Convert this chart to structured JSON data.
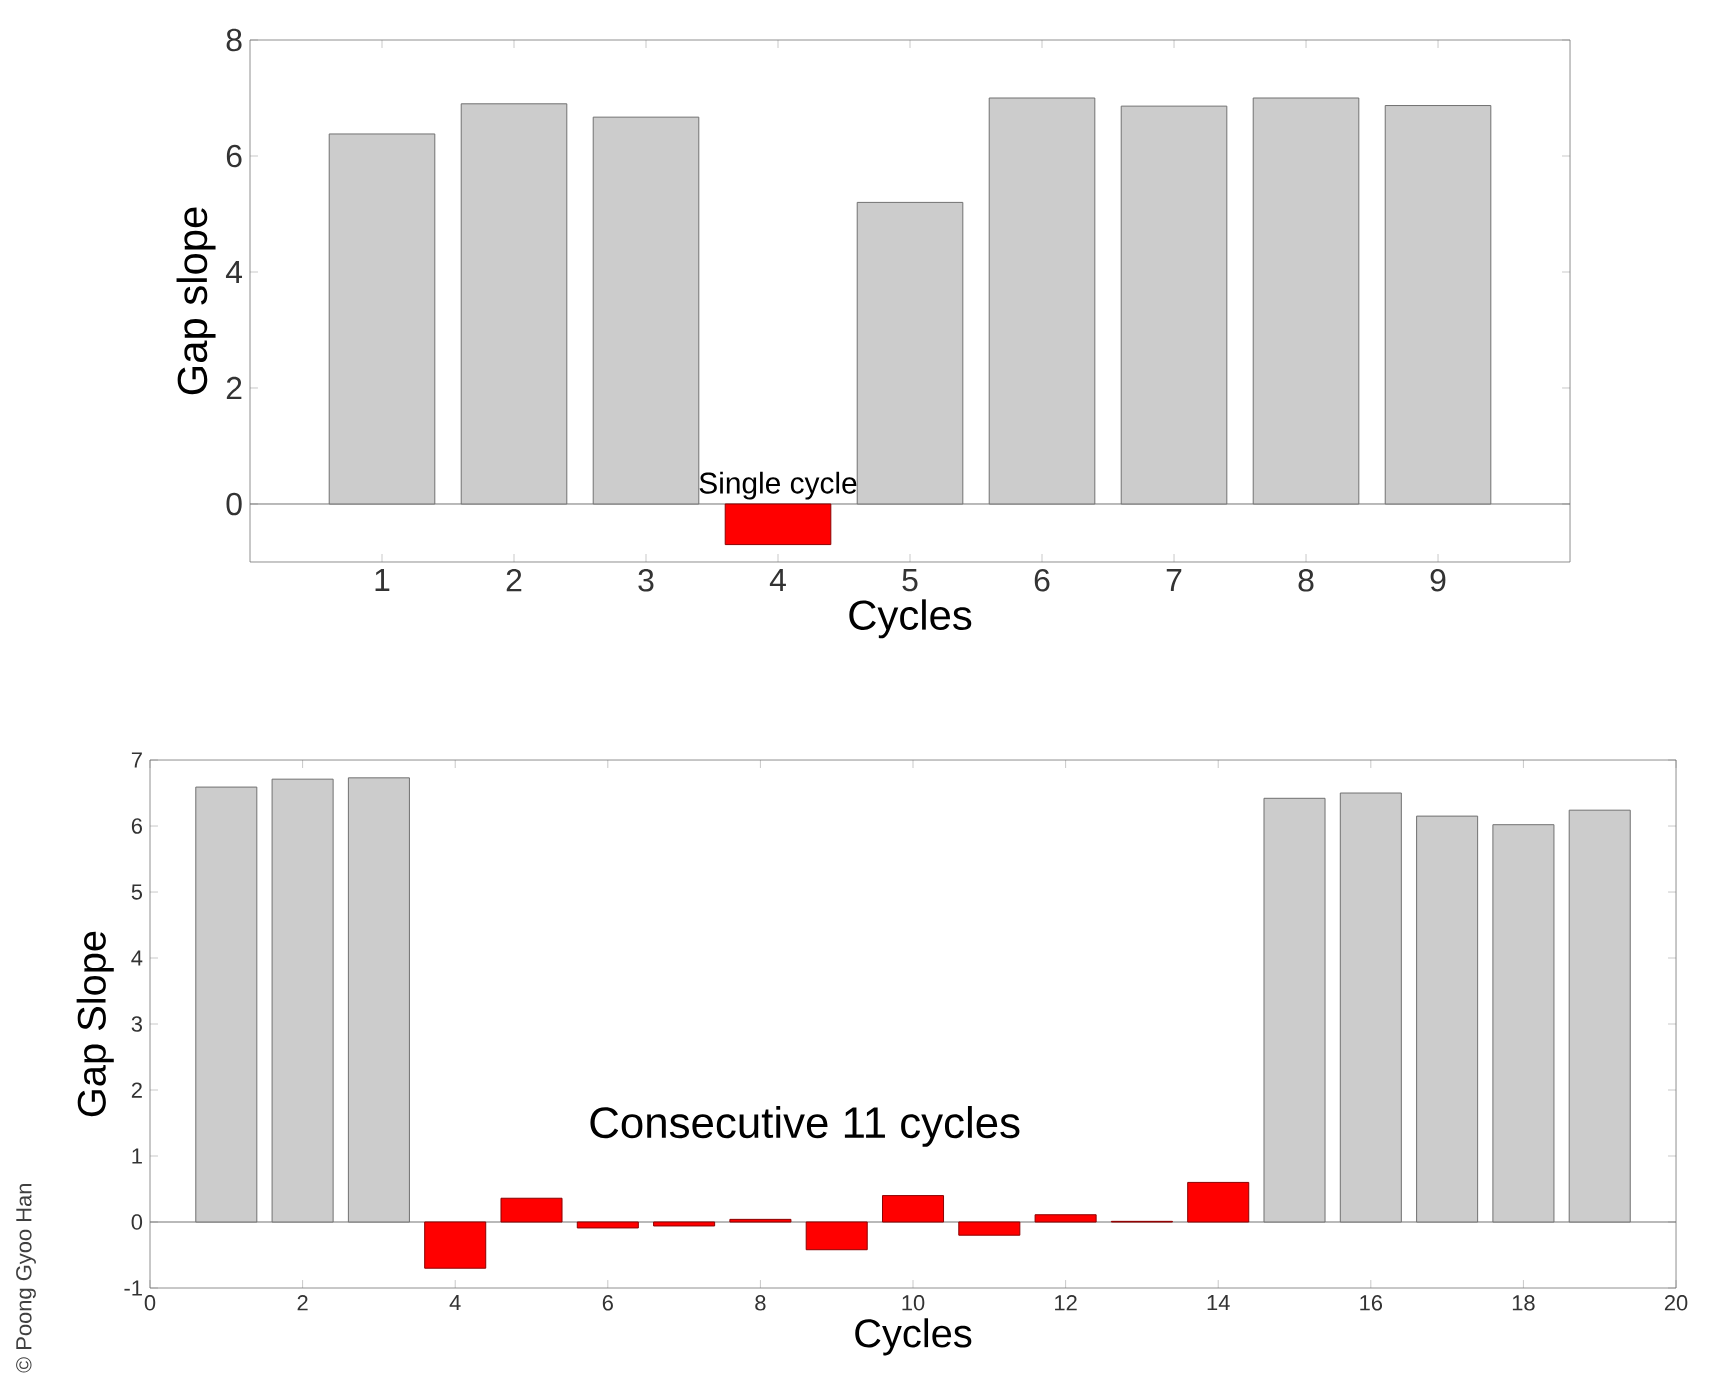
{
  "chart_data": [
    {
      "type": "bar",
      "x": [
        1,
        2,
        3,
        4,
        5,
        6,
        7,
        8,
        9
      ],
      "values": [
        6.38,
        6.9,
        6.67,
        -0.7,
        5.2,
        7.0,
        6.86,
        7.0,
        6.87
      ],
      "colors": [
        "#cccccc",
        "#cccccc",
        "#cccccc",
        "#ff0000",
        "#cccccc",
        "#cccccc",
        "#cccccc",
        "#cccccc",
        "#cccccc"
      ],
      "xlim": [
        0,
        10
      ],
      "ylim": [
        -1,
        8
      ],
      "xticks": [
        1,
        2,
        3,
        4,
        5,
        6,
        7,
        8,
        9
      ],
      "yticks": [
        0,
        2,
        4,
        6,
        8
      ],
      "xlabel": "Cycles",
      "ylabel": "Gap slope",
      "grid": false,
      "ref_lines": [
        {
          "axis": "y",
          "value": 0
        }
      ],
      "annotations": [
        {
          "text": "Single cycle",
          "x": 4,
          "y": 0
        }
      ]
    },
    {
      "type": "bar",
      "x": [
        1,
        2,
        3,
        4,
        5,
        6,
        7,
        8,
        9,
        10,
        11,
        12,
        13,
        14,
        15,
        16,
        17,
        18,
        19
      ],
      "values": [
        6.59,
        6.71,
        6.73,
        -0.7,
        0.36,
        -0.09,
        -0.06,
        0.04,
        -0.42,
        0.4,
        -0.2,
        0.11,
        0.01,
        0.6,
        6.42,
        6.5,
        6.15,
        6.02,
        6.24
      ],
      "colors": [
        "#cccccc",
        "#cccccc",
        "#cccccc",
        "#ff0000",
        "#ff0000",
        "#ff0000",
        "#ff0000",
        "#ff0000",
        "#ff0000",
        "#ff0000",
        "#ff0000",
        "#ff0000",
        "#ff0000",
        "#ff0000",
        "#cccccc",
        "#cccccc",
        "#cccccc",
        "#cccccc",
        "#cccccc"
      ],
      "xlim": [
        0,
        20
      ],
      "ylim": [
        -1,
        7
      ],
      "xticks": [
        0,
        2,
        4,
        6,
        8,
        10,
        12,
        14,
        16,
        18,
        20
      ],
      "yticks": [
        -1,
        0,
        1,
        2,
        3,
        4,
        5,
        6,
        7
      ],
      "xlabel": "Cycles",
      "ylabel": "Gap Slope",
      "grid": false,
      "ref_lines": [
        {
          "axis": "y",
          "value": 0
        }
      ],
      "annotations": [
        "Consecutive 11 cycles",
        "© Poong Gyoo Han"
      ]
    }
  ]
}
